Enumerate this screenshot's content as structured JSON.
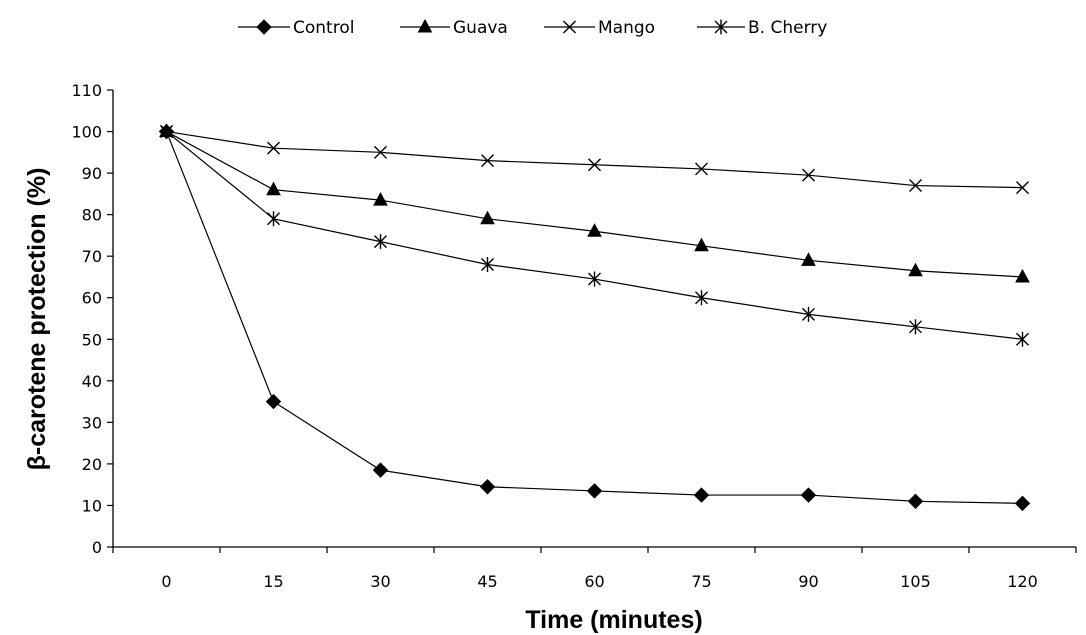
{
  "chart_data": {
    "type": "line",
    "title": "",
    "xlabel": "Time (minutes)",
    "ylabel": "β-carotene protection (%)",
    "x": [
      0,
      15,
      30,
      45,
      60,
      75,
      90,
      105,
      120
    ],
    "x_tick_labels": [
      "0",
      "15",
      "30",
      "45",
      "60",
      "75",
      "90",
      "105",
      "120"
    ],
    "ylim": [
      0,
      110
    ],
    "y_ticks": [
      0,
      10,
      20,
      30,
      40,
      50,
      60,
      70,
      80,
      90,
      100,
      110
    ],
    "y_tick_labels": [
      "0",
      "10",
      "20",
      "30",
      "40",
      "50",
      "60",
      "70",
      "80",
      "90",
      "100",
      "110"
    ],
    "grid": false,
    "legend_position": "top",
    "series": [
      {
        "name": "Control",
        "marker": "diamond",
        "values": [
          100,
          35,
          18.5,
          14.5,
          13.5,
          12.5,
          12.5,
          11,
          10.5
        ]
      },
      {
        "name": "Guava",
        "marker": "triangle",
        "values": [
          100,
          86,
          83.5,
          79,
          76,
          72.5,
          69,
          66.5,
          65
        ]
      },
      {
        "name": "Mango",
        "marker": "x",
        "values": [
          100,
          96,
          95,
          93,
          92,
          91,
          89.5,
          87,
          86.5
        ]
      },
      {
        "name": "B. Cherry",
        "marker": "star",
        "values": [
          100,
          79,
          73.5,
          68,
          64.5,
          60,
          56,
          53,
          50
        ]
      }
    ]
  }
}
